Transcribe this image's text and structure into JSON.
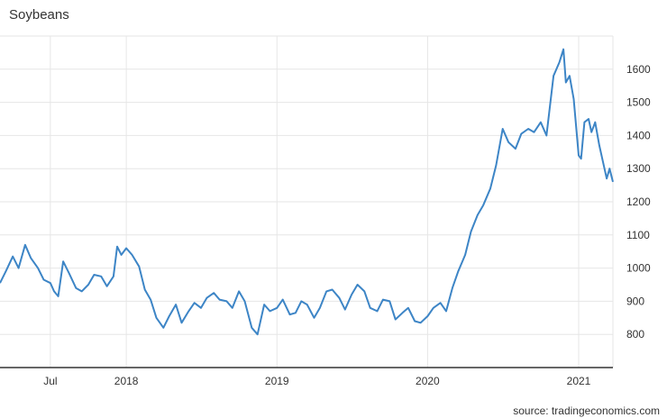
{
  "title": "Soybeans",
  "source": "source: tradingeconomics.com",
  "colors": {
    "line": "#3d85c6",
    "grid": "#e6e6e6",
    "axis": "#333333"
  },
  "chart_data": {
    "type": "line",
    "title": "Soybeans",
    "xlabel": "",
    "ylabel": "",
    "x_tick_labels": [
      "Jul",
      "2018",
      "2019",
      "2020",
      "2021"
    ],
    "x_tick_dates": [
      "2017-07-01",
      "2018-01-01",
      "2019-01-01",
      "2020-01-01",
      "2021-01-01"
    ],
    "xlim": [
      "2017-03-01",
      "2021-03-25"
    ],
    "y_tick_labels": [
      "800",
      "900",
      "1000",
      "1100",
      "1200",
      "1300",
      "1400",
      "1500",
      "1600"
    ],
    "ylim": [
      700,
      1700
    ],
    "y_axis_position": "right",
    "grid": true,
    "legend": "none",
    "series": [
      {
        "x": [
          "2017-03-01",
          "2017-03-15",
          "2017-04-01",
          "2017-04-15",
          "2017-05-01",
          "2017-05-15",
          "2017-06-01",
          "2017-06-15",
          "2017-07-01",
          "2017-07-10",
          "2017-07-20",
          "2017-08-01",
          "2017-08-15",
          "2017-09-01",
          "2017-09-15",
          "2017-10-01",
          "2017-10-15",
          "2017-11-01",
          "2017-11-15",
          "2017-12-01",
          "2017-12-10",
          "2017-12-20",
          "2018-01-01",
          "2018-01-15",
          "2018-02-01",
          "2018-02-15",
          "2018-03-01",
          "2018-03-15",
          "2018-04-01",
          "2018-04-15",
          "2018-05-01",
          "2018-05-15",
          "2018-06-01",
          "2018-06-15",
          "2018-07-01",
          "2018-07-15",
          "2018-08-01",
          "2018-08-15",
          "2018-09-01",
          "2018-09-15",
          "2018-10-01",
          "2018-10-15",
          "2018-11-01",
          "2018-11-15",
          "2018-12-01",
          "2018-12-15",
          "2019-01-01",
          "2019-01-15",
          "2019-02-01",
          "2019-02-15",
          "2019-03-01",
          "2019-03-15",
          "2019-04-01",
          "2019-04-15",
          "2019-05-01",
          "2019-05-15",
          "2019-06-01",
          "2019-06-15",
          "2019-07-01",
          "2019-07-15",
          "2019-08-01",
          "2019-08-15",
          "2019-09-01",
          "2019-09-15",
          "2019-10-01",
          "2019-10-15",
          "2019-11-01",
          "2019-11-15",
          "2019-12-01",
          "2019-12-15",
          "2020-01-01",
          "2020-01-15",
          "2020-02-01",
          "2020-02-15",
          "2020-03-01",
          "2020-03-15",
          "2020-04-01",
          "2020-04-15",
          "2020-05-01",
          "2020-05-15",
          "2020-06-01",
          "2020-06-15",
          "2020-07-01",
          "2020-07-15",
          "2020-08-01",
          "2020-08-15",
          "2020-09-01",
          "2020-09-15",
          "2020-10-01",
          "2020-10-15",
          "2020-11-01",
          "2020-11-15",
          "2020-11-25",
          "2020-12-01",
          "2020-12-10",
          "2020-12-20",
          "2021-01-01",
          "2021-01-07",
          "2021-01-15",
          "2021-01-25",
          "2021-02-01",
          "2021-02-10",
          "2021-02-20",
          "2021-03-01",
          "2021-03-10",
          "2021-03-17",
          "2021-03-25"
        ],
        "values": [
          955,
          990,
          1035,
          1000,
          1070,
          1030,
          1000,
          965,
          955,
          930,
          915,
          1020,
          985,
          940,
          930,
          950,
          980,
          975,
          945,
          975,
          1065,
          1040,
          1060,
          1040,
          1005,
          935,
          905,
          850,
          820,
          855,
          890,
          835,
          870,
          895,
          880,
          910,
          925,
          905,
          900,
          880,
          930,
          900,
          820,
          800,
          890,
          870,
          880,
          905,
          860,
          865,
          900,
          890,
          850,
          880,
          930,
          935,
          910,
          875,
          920,
          950,
          930,
          880,
          870,
          905,
          900,
          845,
          865,
          880,
          840,
          835,
          855,
          880,
          895,
          870,
          940,
          990,
          1040,
          1110,
          1160,
          1190,
          1240,
          1310,
          1420,
          1380,
          1360,
          1405,
          1420,
          1410,
          1440,
          1400,
          1580,
          1620,
          1660,
          1560,
          1580,
          1510,
          1340,
          1330,
          1440,
          1450,
          1410,
          1440,
          1370,
          1320,
          1270,
          1300,
          1260
        ]
      }
    ]
  }
}
